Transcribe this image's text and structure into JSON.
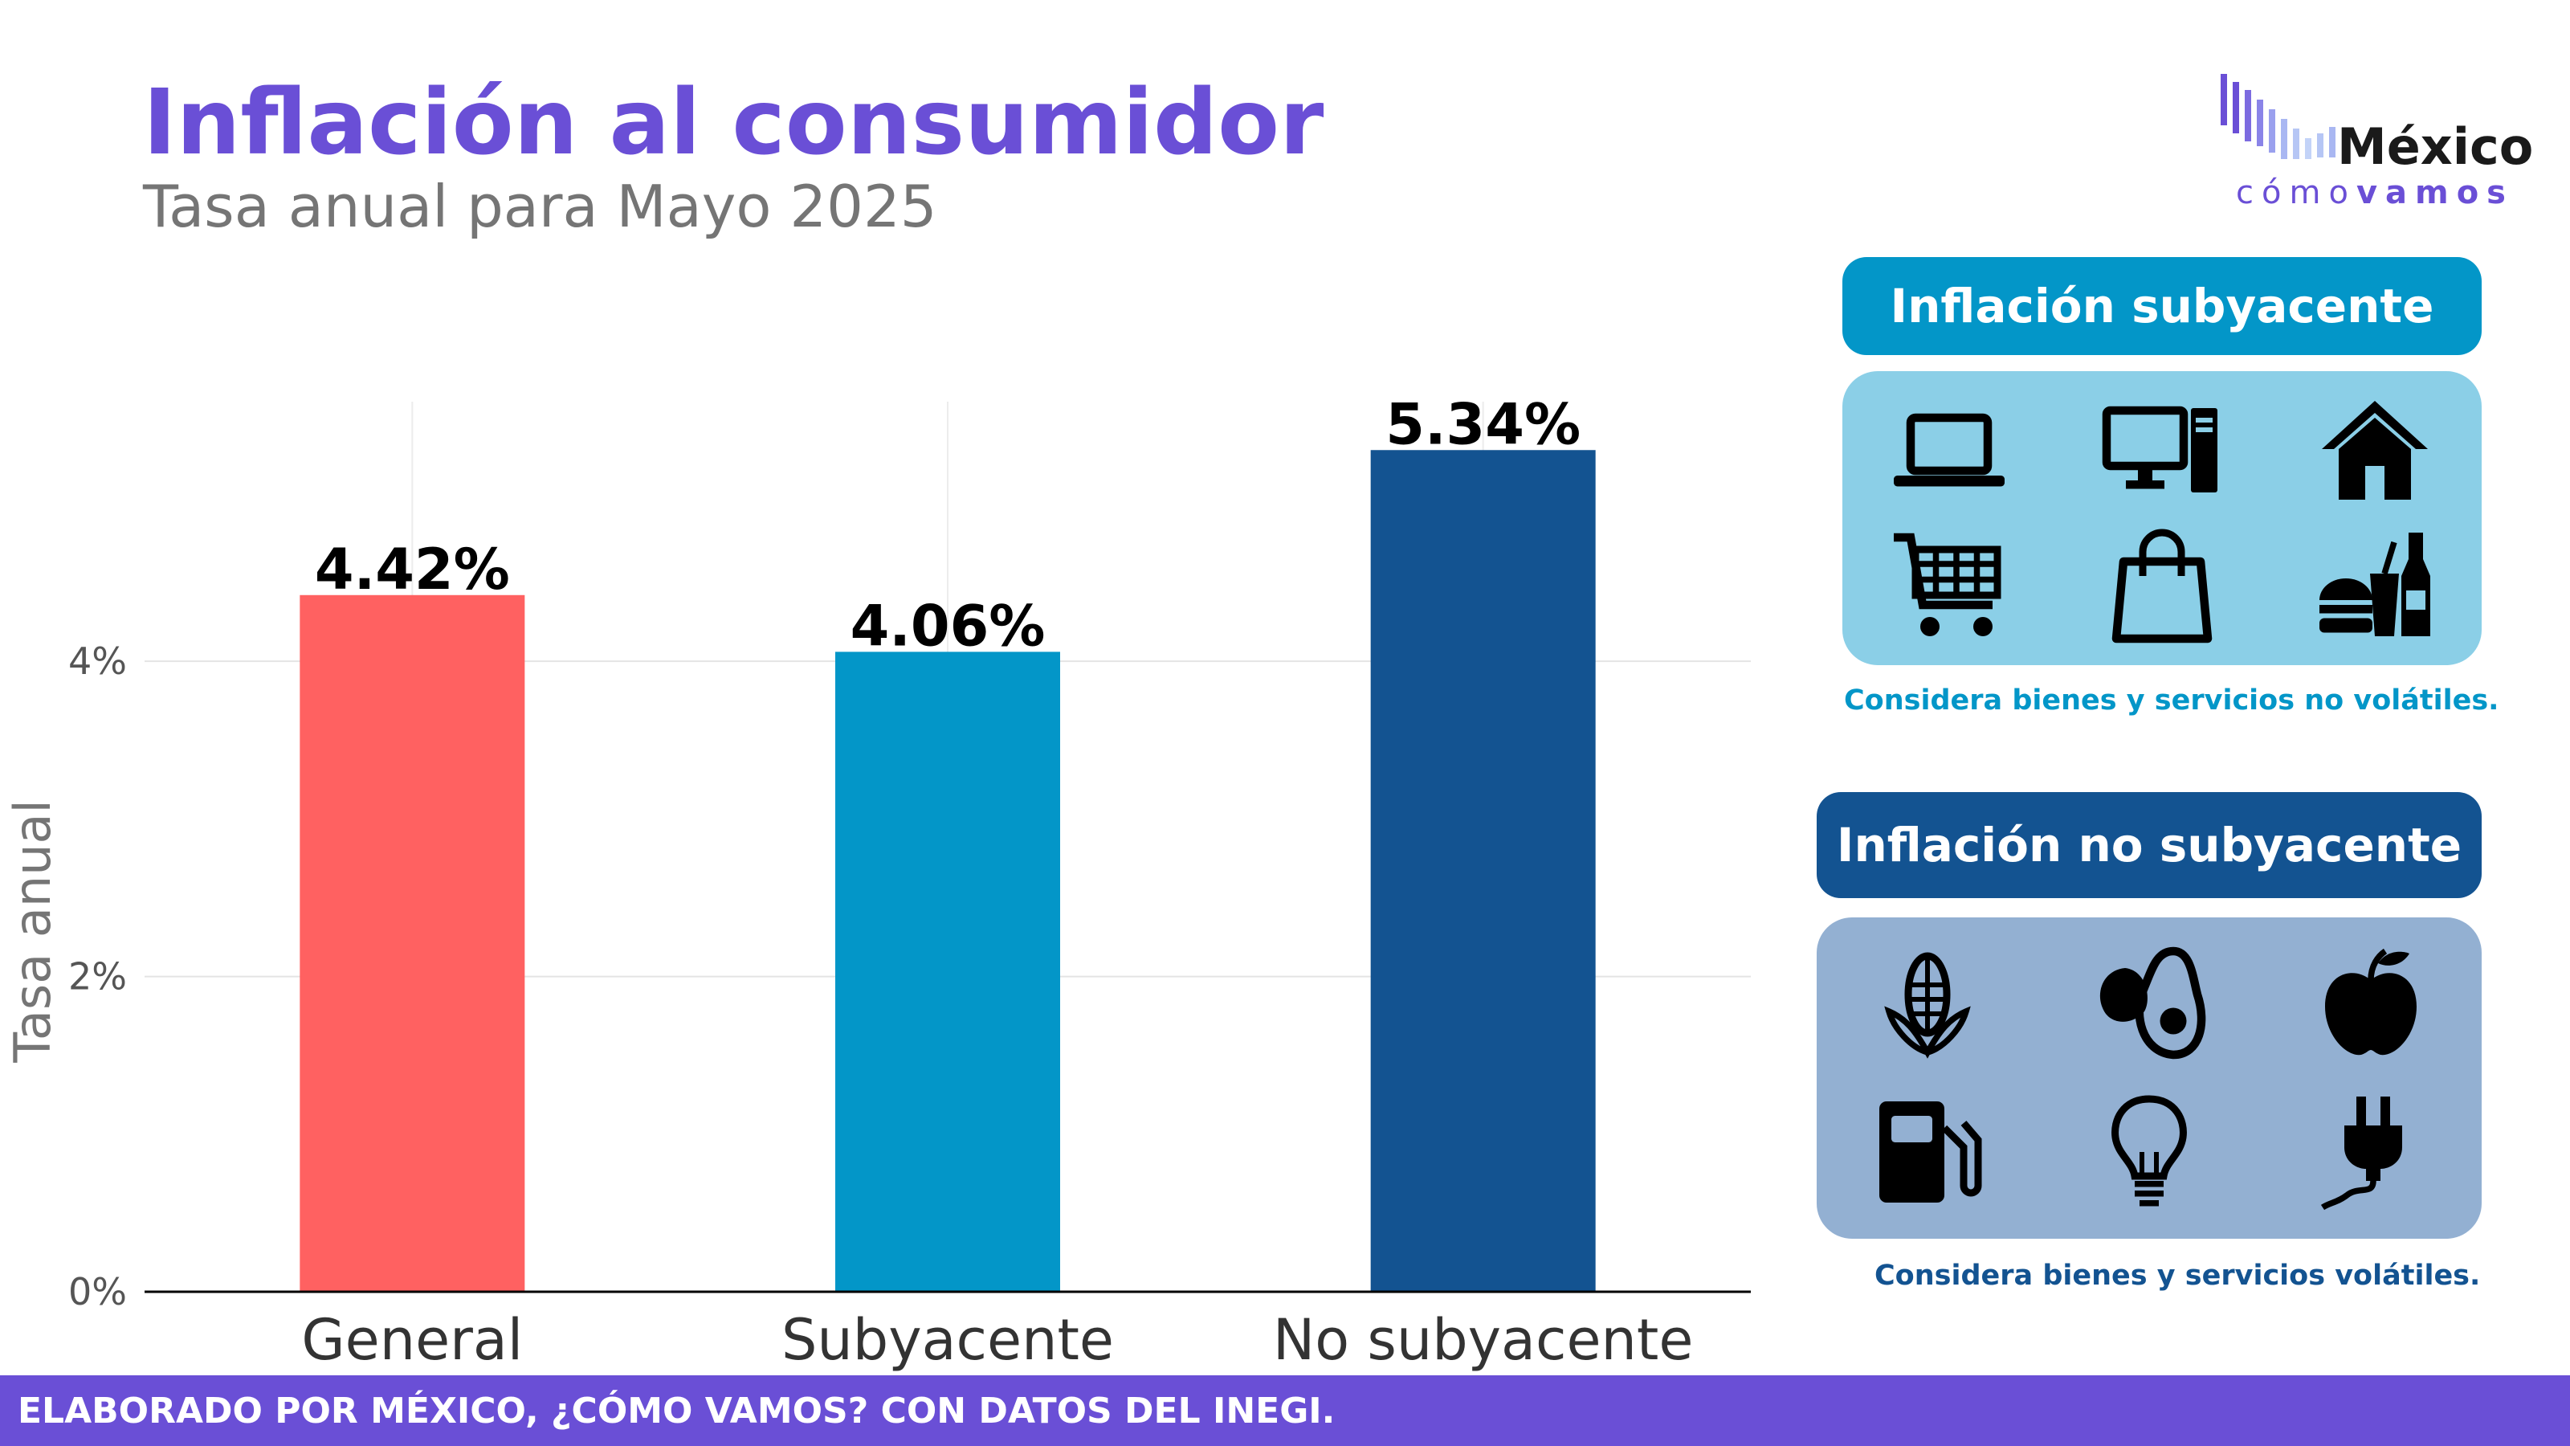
{
  "header": {
    "title": "Inflación al consumidor",
    "subtitle": "Tasa anual para Mayo 2025"
  },
  "logo": {
    "word": "México",
    "sub_light": "cómo",
    "sub_bold": "vamos"
  },
  "chart_data": {
    "type": "bar",
    "categories": [
      "General",
      "Subyacente",
      "No subyacente"
    ],
    "values": [
      4.42,
      4.06,
      5.34
    ],
    "value_labels": [
      "4.42%",
      "4.06%",
      "5.34%"
    ],
    "colors": [
      "#ff6161",
      "#0396c8",
      "#135391"
    ],
    "title": "Inflación al consumidor",
    "ylabel": "Tasa anual",
    "ylim": [
      0,
      5.8
    ],
    "yticks": [
      0,
      2,
      4
    ],
    "ytick_labels": [
      "0%",
      "2%",
      "4%"
    ],
    "grid": true
  },
  "panels": {
    "core": {
      "title": "Inflación subyacente",
      "note": "Considera bienes y servicios no volátiles.",
      "icons": [
        "laptop-icon",
        "desktop-computer-icon",
        "house-icon",
        "shopping-cart-icon",
        "shopping-bag-icon",
        "fast-food-icon"
      ],
      "accent": "#0396c8",
      "panel_color": "#8bcfe7"
    },
    "noncore": {
      "title": "Inflación no subyacente",
      "note": "Considera bienes y servicios volátiles.",
      "icons": [
        "corn-icon",
        "avocado-icon",
        "apple-icon",
        "fuel-pump-icon",
        "light-bulb-icon",
        "electric-plug-icon"
      ],
      "accent": "#135391",
      "panel_color": "#93b0d2"
    }
  },
  "footer": {
    "text": "ELABORADO POR MÉXICO, ¿CÓMO VAMOS? CON DATOS DEL INEGI."
  }
}
